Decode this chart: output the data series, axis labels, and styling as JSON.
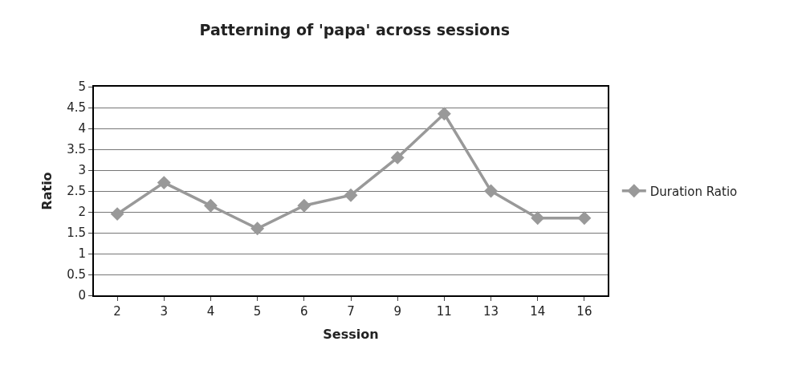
{
  "chart_data": {
    "type": "line",
    "title": "Patterning of 'papa' across sessions",
    "xlabel": "Session",
    "ylabel": "Ratio",
    "categories": [
      "2",
      "3",
      "4",
      "5",
      "6",
      "7",
      "9",
      "11",
      "13",
      "14",
      "16"
    ],
    "series": [
      {
        "name": "Duration Ratio",
        "color": "#999999",
        "values": [
          1.95,
          2.7,
          2.15,
          1.6,
          2.15,
          2.4,
          3.3,
          4.35,
          2.5,
          1.85,
          1.85
        ]
      }
    ],
    "ylim": [
      0,
      5
    ],
    "yticks": [
      0,
      0.5,
      1,
      1.5,
      2,
      2.5,
      3,
      3.5,
      4,
      4.5,
      5
    ],
    "grid": "y",
    "legend": "right",
    "marker": "diamond",
    "line_style": "solid"
  }
}
